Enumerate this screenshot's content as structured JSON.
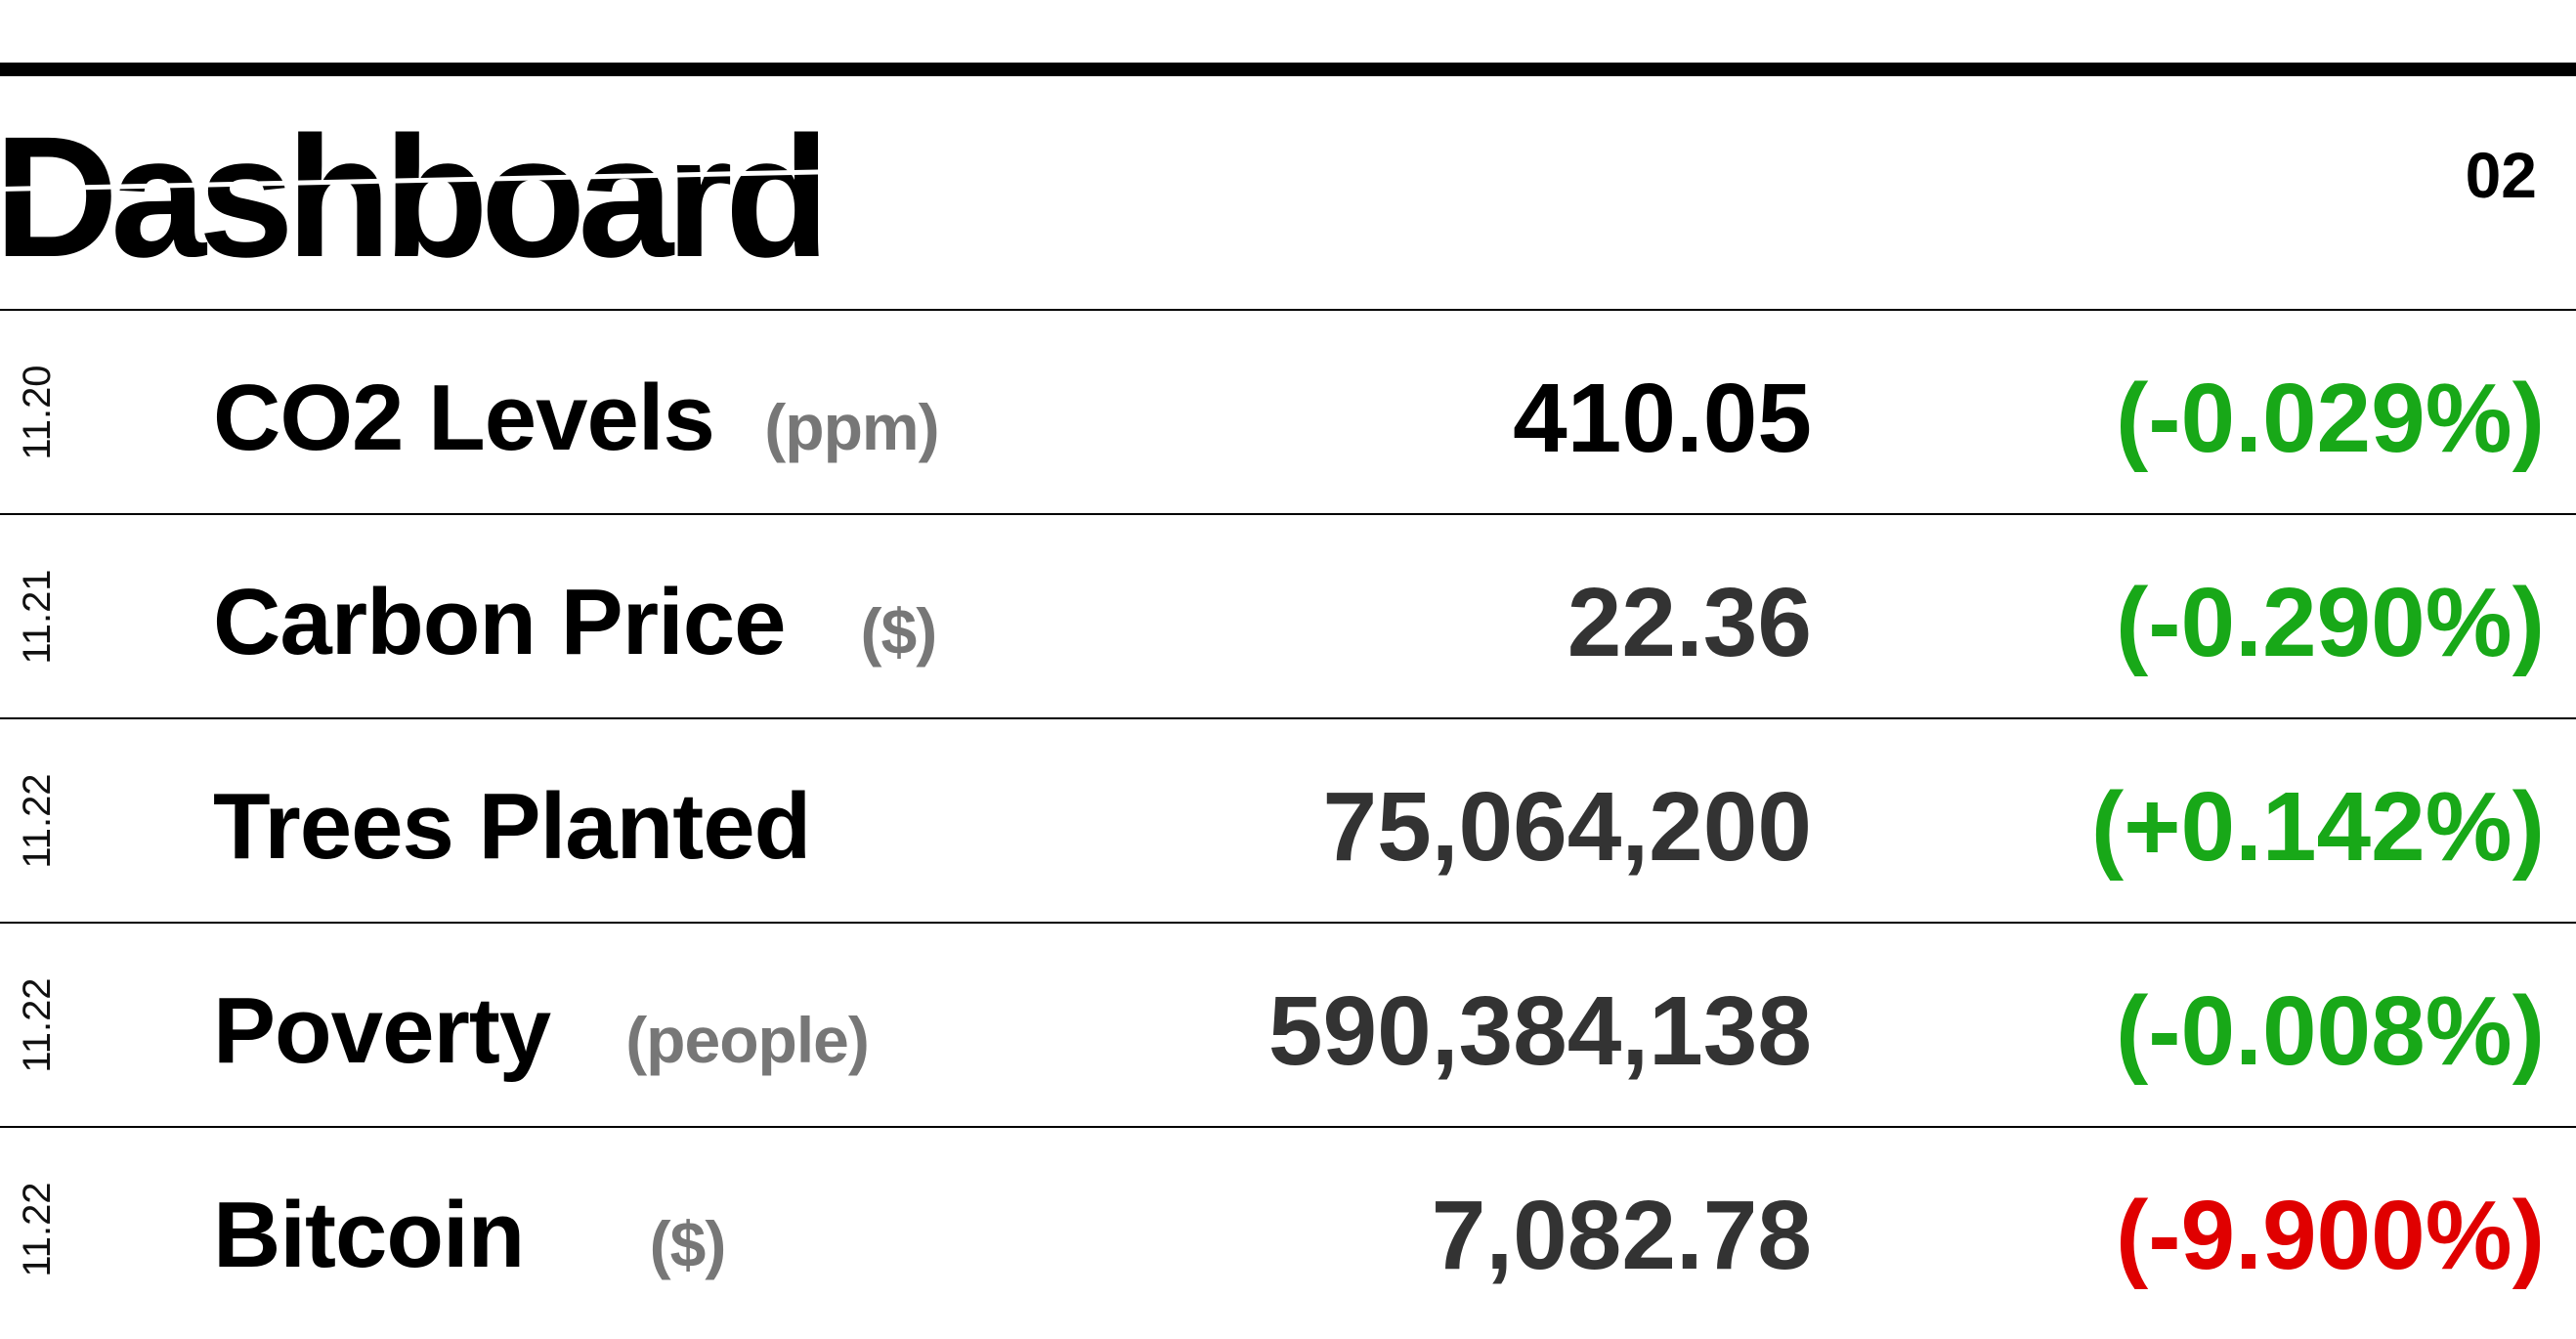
{
  "header": {
    "title": "Dashboard",
    "page_number": "02"
  },
  "colors": {
    "positive": "#18a818",
    "negative": "#e00000",
    "unit": "#777777"
  },
  "rows": [
    {
      "date": "11.20",
      "name": "CO2 Levels",
      "unit": "(ppm)",
      "value": "410.05",
      "change": "(-0.029%)",
      "trend": "positive"
    },
    {
      "date": "11.21",
      "name": "Carbon Price",
      "unit": "($)",
      "value": "22.36",
      "change": "(-0.290%)",
      "trend": "positive"
    },
    {
      "date": "11.22",
      "name": "Trees Planted",
      "unit": "",
      "value": "75,064,200",
      "change": "(+0.142%)",
      "trend": "positive"
    },
    {
      "date": "11.22",
      "name": "Poverty",
      "unit": "(people)",
      "value": "590,384,138",
      "change": "(-0.008%)",
      "trend": "positive"
    },
    {
      "date": "11.22",
      "name": "Bitcoin",
      "unit": "($)",
      "value": "7,082.78",
      "change": "(-9.900%)",
      "trend": "negative"
    }
  ]
}
